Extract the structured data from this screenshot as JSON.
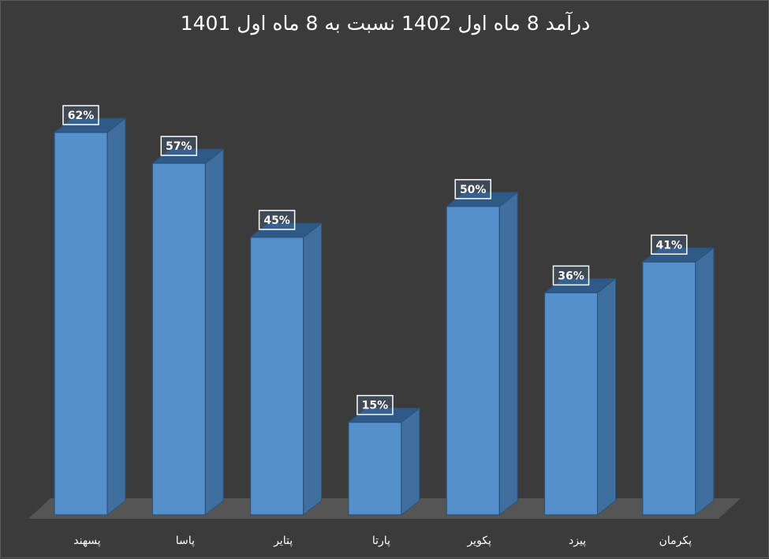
{
  "chart_data": {
    "type": "bar",
    "title": "درآمد 8 ماه اول 1402 نسبت به 8 ماه اول 1401",
    "categories": [
      "پسهند",
      "پاسا",
      "پتایر",
      "پارتا",
      "پکویر",
      "پیزد",
      "پکرمان"
    ],
    "values": [
      62,
      57,
      45,
      15,
      50,
      36,
      41
    ],
    "data_labels": [
      "62%",
      "57%",
      "45%",
      "15%",
      "50%",
      "36%",
      "41%"
    ],
    "xlabel": "",
    "ylabel": "",
    "ylim": [
      0,
      62
    ],
    "grid": false,
    "legend": "none",
    "style": "3d-column",
    "colors": {
      "background": "#3b3b3b",
      "bar_front": "#5590cc",
      "bar_side": "#3f6f9f",
      "bar_top": "#2f5a88",
      "floor": "#555555",
      "label_box": "#ffffff",
      "text": "#ffffff"
    }
  }
}
